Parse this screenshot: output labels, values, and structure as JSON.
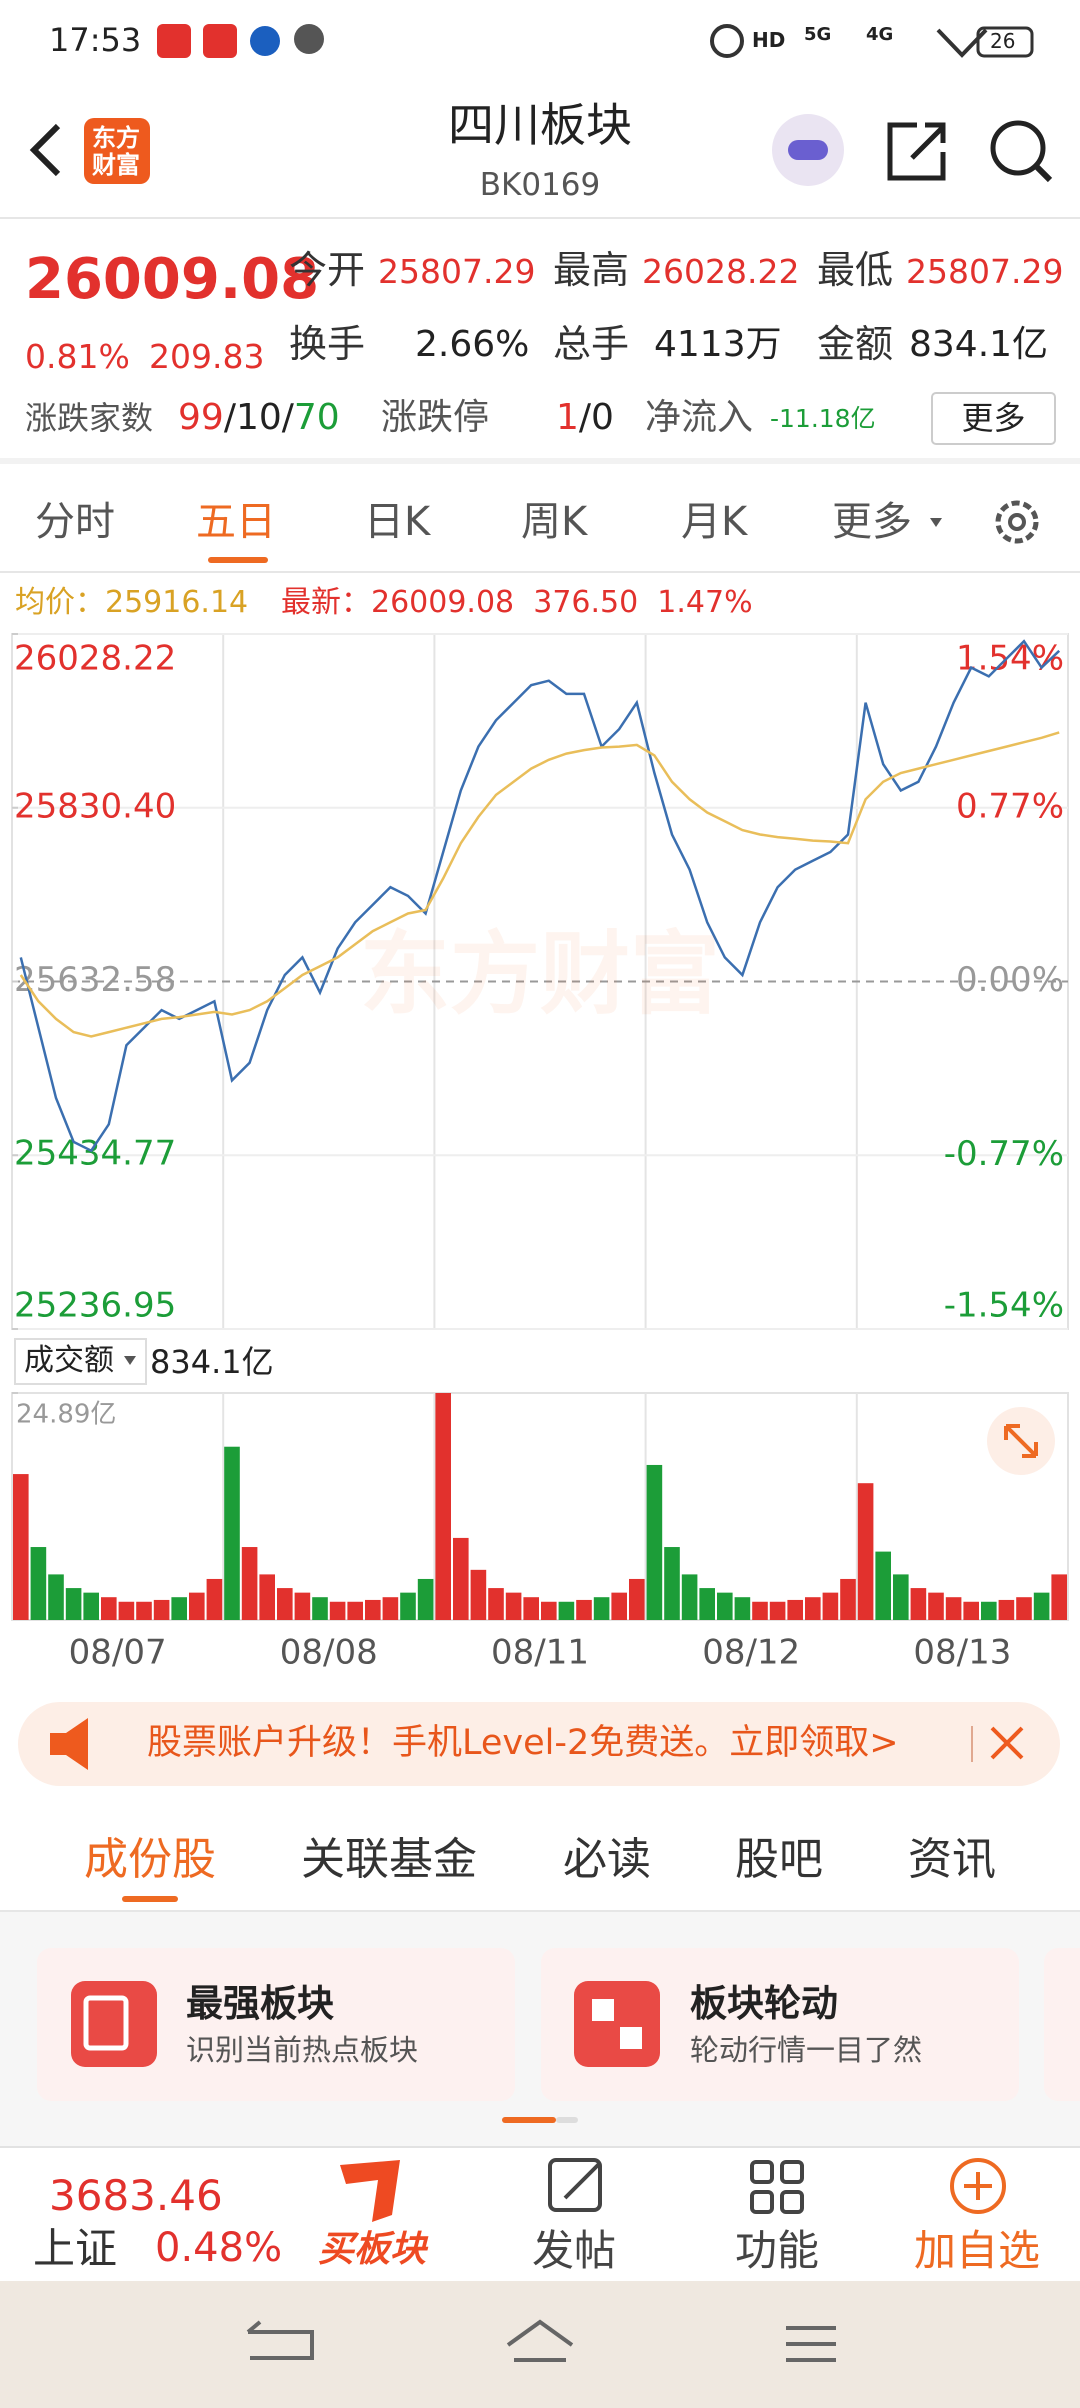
{
  "status_bar": {
    "time": "17:53",
    "hd": "HD",
    "net1": "5G",
    "net2": "4G",
    "battery": "26"
  },
  "header": {
    "logo_line1": "东方",
    "logo_line2": "财富",
    "title": "四川板块",
    "code": "BK0169"
  },
  "quote": {
    "price": "26009.08",
    "change_pct": "0.81%",
    "change": "209.83",
    "open_label": "今开",
    "open": "25807.29",
    "high_label": "最高",
    "high": "26028.22",
    "low_label": "最低",
    "low": "25807.29",
    "turnover_label": "换手",
    "turnover": "2.66%",
    "volume_label": "总手",
    "volume": "4113万",
    "amount_label": "金额",
    "amount": "834.1亿",
    "breadth_label": "涨跌家数",
    "up": "99",
    "flat": "10",
    "down": "70",
    "sep": "/",
    "limit_label": "涨跌停",
    "limit_up": "1",
    "limit_down": "0",
    "inflow_label": "净流入",
    "inflow": "-11.18亿",
    "more": "更多"
  },
  "chart_tabs": [
    "分时",
    "五日",
    "日K",
    "周K",
    "月K",
    "更多"
  ],
  "info_line": {
    "avg_label": "均价：",
    "avg": "25916.14",
    "last_label": "最新：",
    "last": "26009.08",
    "change": "376.50",
    "change_pct": "1.47%"
  },
  "watermark": "东方财富",
  "volume_header": {
    "label": "成交额",
    "value": "834.1亿"
  },
  "chart_data": [
    {
      "type": "line",
      "up_color": "#e2312d",
      "down_color": "#1c9d38",
      "ylim": [
        25236.95,
        26028.22
      ],
      "yticks": [
        26028.22,
        {
          "value": 25830.4,
          "label": "25830.40"
        },
        25632.58,
        25434.77,
        25236.95
      ],
      "y2lim": [
        -1.54,
        1.54
      ],
      "y2ticks": [
        {
          "value": 1.54,
          "label": "1.54%"
        },
        {
          "value": 0.77,
          "label": "0.77%"
        },
        {
          "value": 0,
          "label": "0.00%"
        },
        {
          "value": -0.77,
          "label": "-0.77%"
        },
        {
          "value": -1.54,
          "label": "-1.54%"
        }
      ],
      "series": [
        {
          "color": "#3b6fb0",
          "values": [
            25660,
            25580,
            25500,
            25450,
            25440,
            25470,
            25560,
            25580,
            25600,
            25590,
            25600,
            25610,
            25520,
            25540,
            25600,
            25640,
            25660,
            25620,
            25670,
            25700,
            25720,
            25740,
            25730,
            25710,
            25780,
            25850,
            25900,
            25930,
            25950,
            25970,
            25975,
            25960,
            25960,
            25900,
            25920,
            25950,
            25870,
            25800,
            25760,
            25700,
            25660,
            25640,
            25700,
            25740,
            25760,
            25770,
            25780,
            25800,
            25950,
            25880,
            25850,
            25860,
            25900,
            25950,
            25990,
            25980,
            26000,
            26020,
            25990,
            26009.08
          ]
        },
        {
          "color": "#e9be5a",
          "values": [
            25640,
            25610,
            25590,
            25575,
            25570,
            25575,
            25580,
            25585,
            25590,
            25592,
            25595,
            25598,
            25595,
            25600,
            25610,
            25625,
            25640,
            25650,
            25660,
            25675,
            25690,
            25700,
            25710,
            25714,
            25750,
            25790,
            25820,
            25845,
            25860,
            25875,
            25885,
            25892,
            25896,
            25899,
            25900,
            25902,
            25890,
            25860,
            25840,
            25825,
            25815,
            25805,
            25800,
            25797,
            25795,
            25793,
            25792,
            25790,
            25840,
            25860,
            25870,
            25875,
            25880,
            25885,
            25890,
            25895,
            25900,
            25905,
            25910,
            25916.14
          ]
        }
      ]
    },
    {
      "type": "bar",
      "up_color": "#e2312d",
      "down_color": "#1c9d38",
      "categories": [
        null,
        null,
        null,
        null,
        null,
        null,
        "08/07",
        null,
        null,
        null,
        null,
        null,
        null,
        null,
        null,
        null,
        null,
        null,
        "08/08",
        null,
        null,
        null,
        null,
        null,
        null,
        null,
        null,
        null,
        null,
        null,
        "08/11",
        null,
        null,
        null,
        null,
        null,
        null,
        null,
        null,
        null,
        null,
        null,
        "08/12",
        null,
        null,
        null,
        null,
        null,
        null,
        null,
        null,
        null,
        null,
        null,
        "08/13",
        null,
        null,
        null,
        null,
        null
      ],
      "values": [
        16,
        8,
        5,
        3.5,
        3,
        2.5,
        2,
        2,
        2.2,
        2.5,
        3,
        4.5,
        19,
        8,
        5,
        3.5,
        3,
        2.5,
        2,
        2,
        2.2,
        2.5,
        3,
        4.5,
        24.89,
        9,
        5.5,
        3.5,
        3,
        2.5,
        2,
        2,
        2.2,
        2.5,
        3,
        4.5,
        17,
        8,
        5,
        3.5,
        3,
        2.5,
        2,
        2,
        2.2,
        2.5,
        3,
        4.5,
        15,
        7.5,
        5,
        3.5,
        3,
        2.5,
        2,
        2,
        2.2,
        2.5,
        3,
        5
      ],
      "ylim": [
        0,
        24.89
      ],
      "yticks": [
        {
          "value": 24.89,
          "label": "24.89亿"
        }
      ]
    }
  ],
  "banner": "股票账户升级！手机Level-2免费送。立即领取>",
  "tabs": [
    "成份股",
    "关联基金",
    "必读",
    "股吧",
    "资讯"
  ],
  "cards": [
    {
      "title": "最强板块",
      "subtitle": "识别当前热点板块"
    },
    {
      "title": "板块轮动",
      "subtitle": "轮动行情一目了然"
    }
  ],
  "bottom_bar": {
    "index_value": "3683.46",
    "index_name": "上证",
    "index_change": "0.48%",
    "buy": "买板块",
    "post": "发帖",
    "functions": "功能",
    "add": "加自选"
  }
}
